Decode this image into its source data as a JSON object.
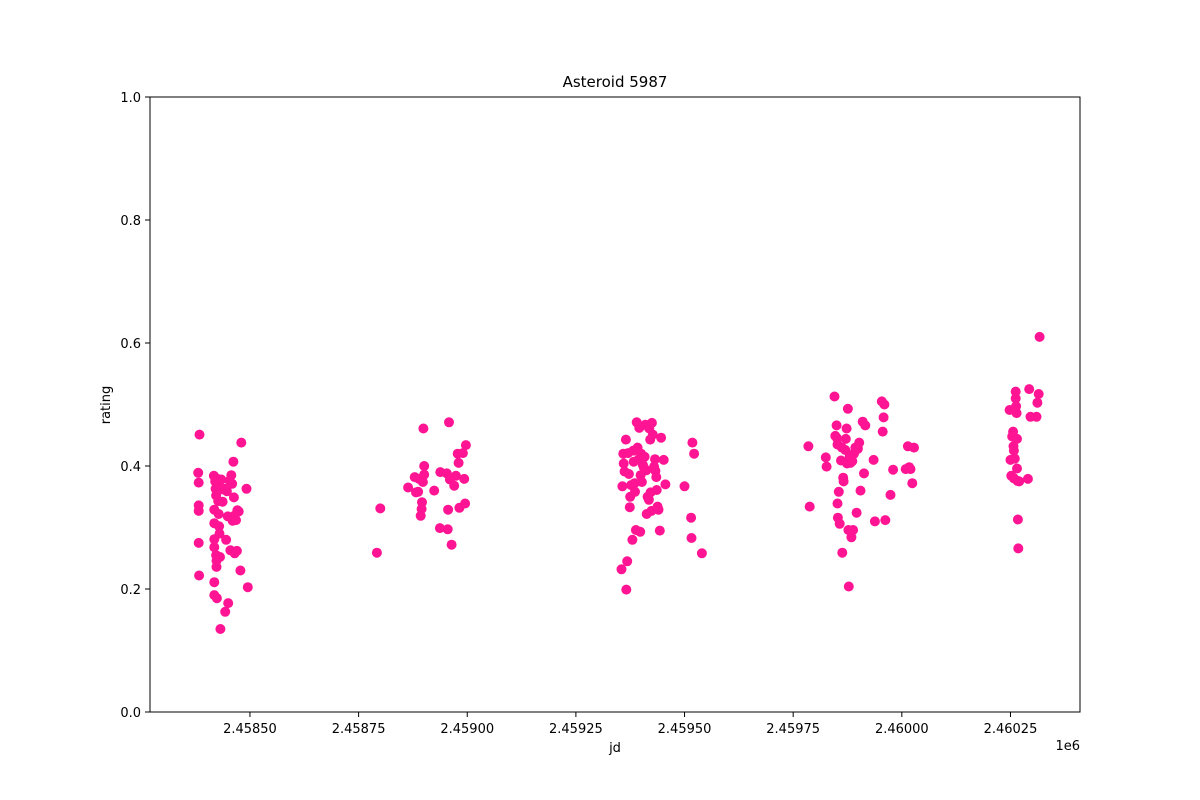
{
  "chart_data": {
    "type": "scatter",
    "title": "Asteroid 5987",
    "xlabel": "jd",
    "ylabel": "rating",
    "x_offset_label": "1e6",
    "xlim": [
      2458270,
      2460410
    ],
    "ylim": [
      0.0,
      1.0
    ],
    "x_ticks": [
      2458500,
      2458750,
      2459000,
      2459250,
      2459500,
      2459750,
      2460000,
      2460250
    ],
    "x_tick_labels": [
      "2.45850",
      "2.45875",
      "2.45900",
      "2.45925",
      "2.45950",
      "2.45975",
      "2.46000",
      "2.46025"
    ],
    "y_ticks": [
      0.0,
      0.2,
      0.4,
      0.6,
      0.8,
      1.0
    ],
    "y_tick_labels": [
      "0.0",
      "0.2",
      "0.4",
      "0.6",
      "0.8",
      "1.0"
    ],
    "grid": false,
    "color": "#ff1493",
    "points": [
      [
        2458381,
        0.389
      ],
      [
        2458382,
        0.373
      ],
      [
        2458382,
        0.336
      ],
      [
        2458382,
        0.327
      ],
      [
        2458382,
        0.275
      ],
      [
        2458383,
        0.222
      ],
      [
        2458384,
        0.451
      ],
      [
        2458417,
        0.384
      ],
      [
        2458418,
        0.329
      ],
      [
        2458418,
        0.307
      ],
      [
        2458418,
        0.281
      ],
      [
        2458418,
        0.268
      ],
      [
        2458418,
        0.211
      ],
      [
        2458418,
        0.19
      ],
      [
        2458420,
        0.375
      ],
      [
        2458421,
        0.363
      ],
      [
        2458422,
        0.352
      ],
      [
        2458422,
        0.255
      ],
      [
        2458423,
        0.246
      ],
      [
        2458423,
        0.236
      ],
      [
        2458424,
        0.185
      ],
      [
        2458425,
        0.379
      ],
      [
        2458426,
        0.368
      ],
      [
        2458427,
        0.343
      ],
      [
        2458428,
        0.322
      ],
      [
        2458429,
        0.302
      ],
      [
        2458430,
        0.29
      ],
      [
        2458431,
        0.252
      ],
      [
        2458432,
        0.135
      ],
      [
        2458434,
        0.378
      ],
      [
        2458435,
        0.362
      ],
      [
        2458437,
        0.342
      ],
      [
        2458440,
        0.363
      ],
      [
        2458443,
        0.163
      ],
      [
        2458445,
        0.28
      ],
      [
        2458447,
        0.359
      ],
      [
        2458449,
        0.318
      ],
      [
        2458450,
        0.177
      ],
      [
        2458453,
        0.376
      ],
      [
        2458455,
        0.263
      ],
      [
        2458457,
        0.385
      ],
      [
        2458459,
        0.371
      ],
      [
        2458460,
        0.311
      ],
      [
        2458462,
        0.407
      ],
      [
        2458463,
        0.349
      ],
      [
        2458464,
        0.319
      ],
      [
        2458465,
        0.258
      ],
      [
        2458468,
        0.312
      ],
      [
        2458470,
        0.262
      ],
      [
        2458471,
        0.328
      ],
      [
        2458474,
        0.326
      ],
      [
        2458478,
        0.23
      ],
      [
        2458480,
        0.438
      ],
      [
        2458492,
        0.363
      ],
      [
        2458495,
        0.203
      ],
      [
        2458792,
        0.259
      ],
      [
        2458800,
        0.331
      ],
      [
        2458864,
        0.365
      ],
      [
        2458879,
        0.382
      ],
      [
        2458882,
        0.357
      ],
      [
        2458887,
        0.358
      ],
      [
        2458889,
        0.379
      ],
      [
        2458893,
        0.319
      ],
      [
        2458895,
        0.33
      ],
      [
        2458896,
        0.341
      ],
      [
        2458898,
        0.374
      ],
      [
        2458899,
        0.461
      ],
      [
        2458901,
        0.386
      ],
      [
        2458901,
        0.4
      ],
      [
        2458924,
        0.36
      ],
      [
        2458937,
        0.299
      ],
      [
        2458938,
        0.39
      ],
      [
        2458953,
        0.388
      ],
      [
        2458955,
        0.297
      ],
      [
        2458956,
        0.329
      ],
      [
        2458958,
        0.471
      ],
      [
        2458960,
        0.378
      ],
      [
        2458964,
        0.272
      ],
      [
        2458970,
        0.368
      ],
      [
        2458974,
        0.384
      ],
      [
        2458978,
        0.42
      ],
      [
        2458980,
        0.405
      ],
      [
        2458982,
        0.332
      ],
      [
        2458990,
        0.421
      ],
      [
        2458993,
        0.379
      ],
      [
        2458995,
        0.339
      ],
      [
        2458997,
        0.434
      ],
      [
        2459355,
        0.232
      ],
      [
        2459357,
        0.367
      ],
      [
        2459359,
        0.42
      ],
      [
        2459360,
        0.404
      ],
      [
        2459362,
        0.391
      ],
      [
        2459365,
        0.443
      ],
      [
        2459366,
        0.199
      ],
      [
        2459368,
        0.245
      ],
      [
        2459370,
        0.421
      ],
      [
        2459372,
        0.387
      ],
      [
        2459374,
        0.333
      ],
      [
        2459375,
        0.35
      ],
      [
        2459377,
        0.369
      ],
      [
        2459380,
        0.28
      ],
      [
        2459382,
        0.425
      ],
      [
        2459383,
        0.407
      ],
      [
        2459385,
        0.372
      ],
      [
        2459386,
        0.358
      ],
      [
        2459388,
        0.296
      ],
      [
        2459390,
        0.471
      ],
      [
        2459392,
        0.43
      ],
      [
        2459395,
        0.411
      ],
      [
        2459396,
        0.462
      ],
      [
        2459398,
        0.293
      ],
      [
        2459399,
        0.385
      ],
      [
        2459400,
        0.42
      ],
      [
        2459402,
        0.374
      ],
      [
        2459404,
        0.402
      ],
      [
        2459406,
        0.398
      ],
      [
        2459408,
        0.415
      ],
      [
        2459410,
        0.467
      ],
      [
        2459412,
        0.393
      ],
      [
        2459413,
        0.322
      ],
      [
        2459415,
        0.35
      ],
      [
        2459418,
        0.345
      ],
      [
        2459419,
        0.461
      ],
      [
        2459421,
        0.443
      ],
      [
        2459422,
        0.357
      ],
      [
        2459424,
        0.327
      ],
      [
        2459425,
        0.47
      ],
      [
        2459427,
        0.451
      ],
      [
        2459430,
        0.399
      ],
      [
        2459432,
        0.411
      ],
      [
        2459433,
        0.392
      ],
      [
        2459435,
        0.382
      ],
      [
        2459436,
        0.361
      ],
      [
        2459438,
        0.334
      ],
      [
        2459440,
        0.329
      ],
      [
        2459443,
        0.295
      ],
      [
        2459446,
        0.446
      ],
      [
        2459452,
        0.41
      ],
      [
        2459456,
        0.37
      ],
      [
        2459500,
        0.367
      ],
      [
        2459515,
        0.316
      ],
      [
        2459516,
        0.283
      ],
      [
        2459518,
        0.438
      ],
      [
        2459522,
        0.42
      ],
      [
        2459540,
        0.258
      ],
      [
        2459785,
        0.432
      ],
      [
        2459788,
        0.334
      ],
      [
        2459825,
        0.414
      ],
      [
        2459827,
        0.399
      ],
      [
        2459845,
        0.513
      ],
      [
        2459847,
        0.449
      ],
      [
        2459850,
        0.466
      ],
      [
        2459851,
        0.445
      ],
      [
        2459852,
        0.435
      ],
      [
        2459852,
        0.339
      ],
      [
        2459853,
        0.316
      ],
      [
        2459855,
        0.358
      ],
      [
        2459857,
        0.306
      ],
      [
        2459860,
        0.409
      ],
      [
        2459862,
        0.43
      ],
      [
        2459863,
        0.259
      ],
      [
        2459865,
        0.381
      ],
      [
        2459866,
        0.375
      ],
      [
        2459870,
        0.426
      ],
      [
        2459871,
        0.444
      ],
      [
        2459873,
        0.461
      ],
      [
        2459874,
        0.404
      ],
      [
        2459876,
        0.493
      ],
      [
        2459877,
        0.296
      ],
      [
        2459878,
        0.204
      ],
      [
        2459880,
        0.415
      ],
      [
        2459882,
        0.405
      ],
      [
        2459884,
        0.284
      ],
      [
        2459886,
        0.408
      ],
      [
        2459888,
        0.296
      ],
      [
        2459890,
        0.42
      ],
      [
        2459893,
        0.43
      ],
      [
        2459896,
        0.324
      ],
      [
        2459899,
        0.428
      ],
      [
        2459902,
        0.438
      ],
      [
        2459905,
        0.36
      ],
      [
        2459910,
        0.472
      ],
      [
        2459913,
        0.388
      ],
      [
        2459916,
        0.466
      ],
      [
        2459935,
        0.41
      ],
      [
        2459938,
        0.31
      ],
      [
        2459954,
        0.505
      ],
      [
        2459956,
        0.456
      ],
      [
        2459958,
        0.479
      ],
      [
        2459960,
        0.5
      ],
      [
        2459962,
        0.312
      ],
      [
        2459974,
        0.353
      ],
      [
        2459980,
        0.394
      ],
      [
        2460009,
        0.395
      ],
      [
        2460014,
        0.432
      ],
      [
        2460017,
        0.398
      ],
      [
        2460020,
        0.395
      ],
      [
        2460024,
        0.372
      ],
      [
        2460028,
        0.43
      ],
      [
        2460248,
        0.491
      ],
      [
        2460250,
        0.41
      ],
      [
        2460252,
        0.384
      ],
      [
        2460254,
        0.448
      ],
      [
        2460256,
        0.456
      ],
      [
        2460257,
        0.432
      ],
      [
        2460258,
        0.425
      ],
      [
        2460258,
        0.38
      ],
      [
        2460260,
        0.412
      ],
      [
        2460262,
        0.51
      ],
      [
        2460262,
        0.521
      ],
      [
        2460263,
        0.497
      ],
      [
        2460264,
        0.486
      ],
      [
        2460265,
        0.444
      ],
      [
        2460265,
        0.396
      ],
      [
        2460266,
        0.376
      ],
      [
        2460267,
        0.313
      ],
      [
        2460268,
        0.266
      ],
      [
        2460270,
        0.375
      ],
      [
        2460290,
        0.379
      ],
      [
        2460293,
        0.525
      ],
      [
        2460296,
        0.48
      ],
      [
        2460310,
        0.48
      ],
      [
        2460312,
        0.503
      ],
      [
        2460315,
        0.517
      ],
      [
        2460317,
        0.61
      ]
    ]
  }
}
